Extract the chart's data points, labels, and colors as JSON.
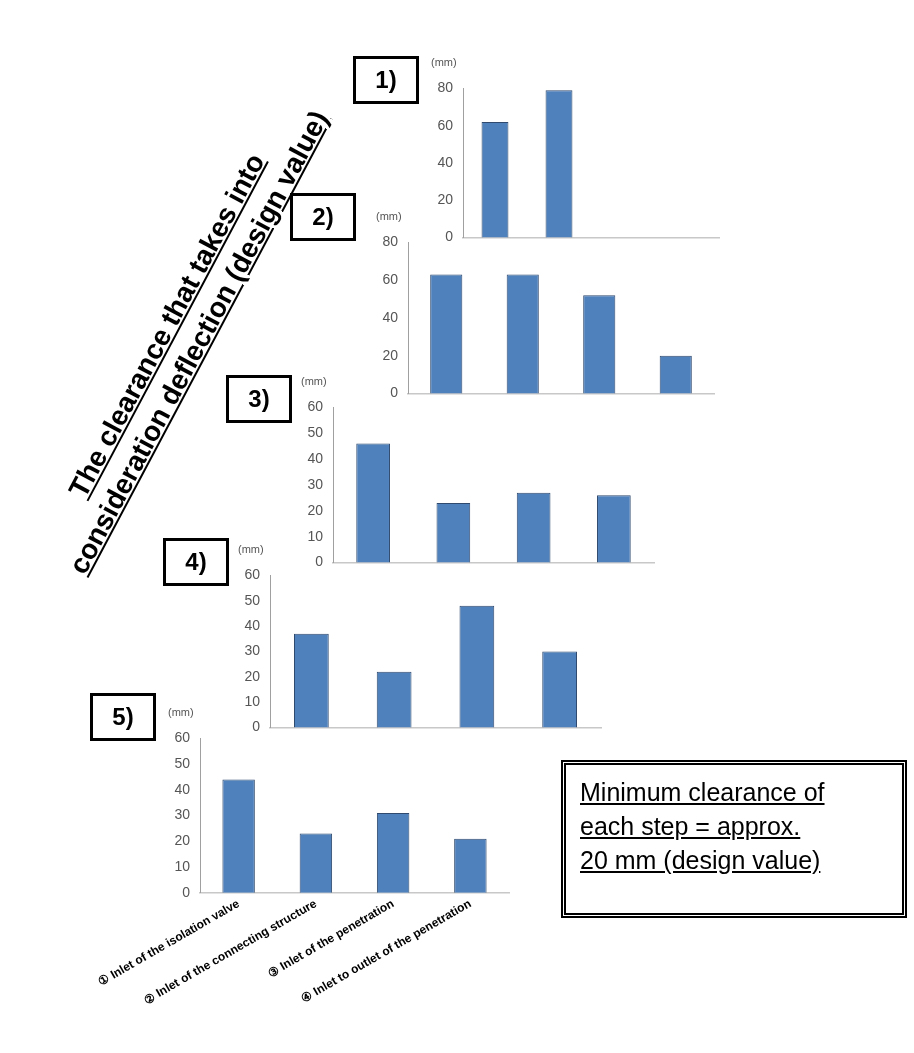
{
  "chart_data": [
    {
      "type": "bar",
      "title": "1)",
      "ylabel": "(mm)",
      "categories": [
        null,
        null,
        null,
        null
      ],
      "values": [
        62,
        79,
        null,
        null
      ],
      "color": "#4f81bd",
      "ylim": [
        0,
        80
      ],
      "yticks": [
        0,
        20,
        40,
        60,
        80
      ],
      "grid": false,
      "tick_labels": "y",
      "annotations": [
        "The clearance that takes into\nconsideration deflection (design value)"
      ]
    },
    {
      "type": "bar",
      "title": "2)",
      "ylabel": "(mm)",
      "categories": [
        null,
        null,
        null,
        null
      ],
      "values": [
        63,
        63,
        52,
        20
      ],
      "color": "#4f81bd",
      "ylim": [
        0,
        80
      ],
      "yticks": [
        0,
        20,
        40,
        60,
        80
      ],
      "grid": false,
      "tick_labels": "y"
    },
    {
      "type": "bar",
      "title": "3)",
      "ylabel": "(mm)",
      "categories": [
        null,
        null,
        null,
        null
      ],
      "values": [
        46,
        23,
        27,
        26
      ],
      "color": "#4f81bd",
      "ylim": [
        0,
        60
      ],
      "yticks": [
        0,
        10,
        20,
        30,
        40,
        50,
        60
      ],
      "grid": false,
      "tick_labels": "y"
    },
    {
      "type": "bar",
      "title": "4)",
      "ylabel": "(mm)",
      "categories": [
        null,
        null,
        null,
        null
      ],
      "values": [
        37,
        22,
        48,
        30
      ],
      "color": "#4f81bd",
      "ylim": [
        0,
        60
      ],
      "yticks": [
        0,
        10,
        20,
        30,
        40,
        50,
        60
      ],
      "grid": false,
      "tick_labels": "y"
    },
    {
      "type": "bar",
      "title": "5)",
      "ylabel": "(mm)",
      "categories": [
        "① Inlet of the isolation valve",
        "② Inlet of the connecting structure",
        "③ Inlet of the penetration",
        "④ Inlet to outlet of the penetration"
      ],
      "values": [
        44,
        23,
        31,
        21
      ],
      "color": "#4f81bd",
      "ylim": [
        0,
        60
      ],
      "yticks": [
        0,
        10,
        20,
        30,
        40,
        50,
        60
      ],
      "grid": false,
      "annotations": [
        "Minimum clearance of\neach step = approx.\n20 mm (design value)"
      ]
    }
  ]
}
